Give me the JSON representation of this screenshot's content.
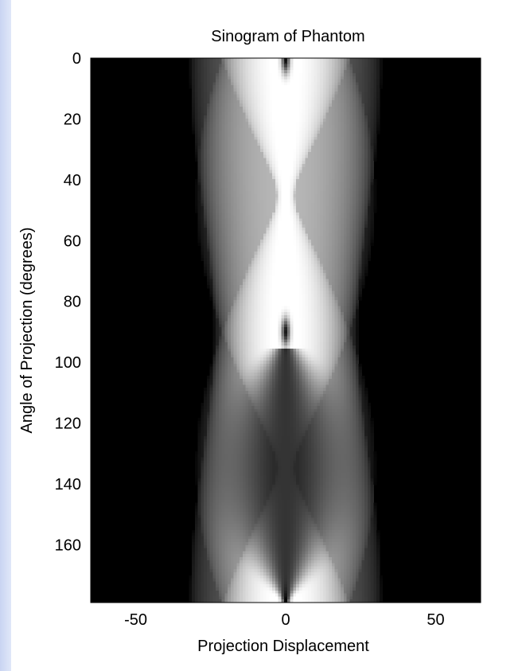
{
  "chart_data": {
    "type": "heatmap",
    "title": "Sinogram of Phantom",
    "xlabel": "Projection Displacement",
    "ylabel": "Angle of Projection (degrees)",
    "xlim": [
      -65,
      65
    ],
    "ylim": [
      0,
      179
    ],
    "y_reversed": true,
    "colormap": "gray",
    "grid": false,
    "x_ticks": [
      -50,
      0,
      50
    ],
    "y_ticks": [
      0,
      20,
      40,
      60,
      80,
      100,
      120,
      140,
      160
    ],
    "description": "",
    "bright_peak": {
      "angle": 45,
      "displacement": 0
    },
    "zero_dip_angles": [
      0,
      90
    ]
  }
}
